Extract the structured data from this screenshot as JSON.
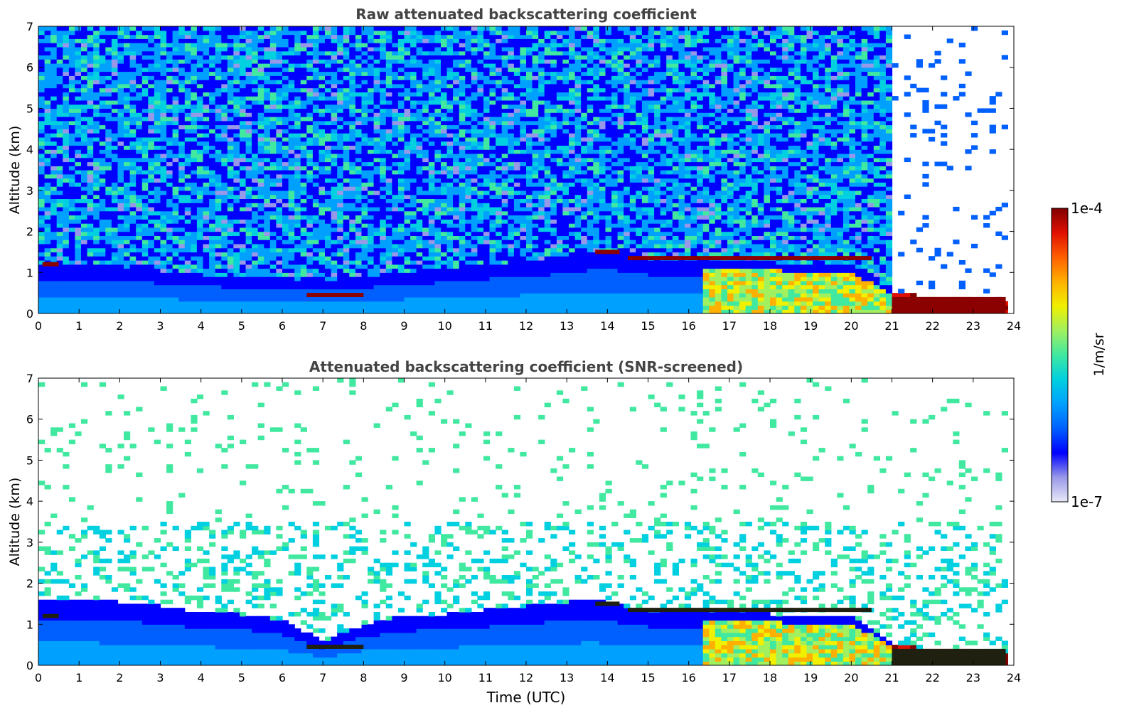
{
  "chart_data": [
    {
      "type": "heatmap",
      "title": "Raw attenuated backscattering coefficient",
      "xlabel": "",
      "ylabel": "Altitude (km)",
      "xlim": [
        0,
        24
      ],
      "ylim": [
        0,
        7
      ],
      "xticks": [
        0,
        1,
        2,
        3,
        4,
        5,
        6,
        7,
        8,
        9,
        10,
        11,
        12,
        13,
        14,
        15,
        16,
        17,
        18,
        19,
        20,
        21,
        22,
        23,
        24
      ],
      "yticks": [
        0,
        1,
        2,
        3,
        4,
        5,
        6,
        7
      ],
      "screened": false,
      "layer_top_km": [
        [
          0,
          1.2
        ],
        [
          1,
          1.2
        ],
        [
          2,
          1.15
        ],
        [
          3,
          1.05
        ],
        [
          4,
          0.95
        ],
        [
          5,
          0.9
        ],
        [
          6,
          0.88
        ],
        [
          7,
          0.8
        ],
        [
          8,
          0.9
        ],
        [
          9,
          1.0
        ],
        [
          10,
          1.1
        ],
        [
          11,
          1.2
        ],
        [
          12,
          1.3
        ],
        [
          13,
          1.4
        ],
        [
          13.7,
          1.55
        ],
        [
          14.2,
          1.5
        ],
        [
          14.5,
          1.5
        ],
        [
          15,
          1.35
        ],
        [
          16,
          1.3
        ],
        [
          17,
          1.35
        ],
        [
          18,
          1.25
        ],
        [
          19,
          1.2
        ],
        [
          20,
          1.2
        ],
        [
          21,
          0.55
        ],
        [
          22,
          0.4
        ],
        [
          23,
          0.35
        ],
        [
          23.8,
          0.3
        ]
      ],
      "cloud_layers": [
        {
          "x": [
            0.1,
            0.5
          ],
          "alt_km": 1.2
        },
        {
          "x": [
            6.6,
            8.0
          ],
          "alt_km": 0.45
        },
        {
          "x": [
            13.7,
            14.3
          ],
          "alt_km": 1.5
        },
        {
          "x": [
            14.5,
            20.5
          ],
          "alt_km": 1.35
        },
        {
          "x": [
            21.0,
            23.8
          ],
          "alt_km": 0.25
        }
      ]
    },
    {
      "type": "heatmap",
      "title": "Attenuated backscattering coefficient (SNR-screened)",
      "xlabel": "Time (UTC)",
      "ylabel": "Altitude (km)",
      "xlim": [
        0,
        24
      ],
      "ylim": [
        0,
        7
      ],
      "xticks": [
        0,
        1,
        2,
        3,
        4,
        5,
        6,
        7,
        8,
        9,
        10,
        11,
        12,
        13,
        14,
        15,
        16,
        17,
        18,
        19,
        20,
        21,
        22,
        23,
        24
      ],
      "yticks": [
        0,
        1,
        2,
        3,
        4,
        5,
        6,
        7
      ],
      "screened": true,
      "layer_top_km": [
        [
          0,
          1.6
        ],
        [
          1,
          1.6
        ],
        [
          2,
          1.55
        ],
        [
          3,
          1.45
        ],
        [
          4,
          1.3
        ],
        [
          5,
          1.25
        ],
        [
          6,
          1.1
        ],
        [
          7,
          0.6
        ],
        [
          8,
          1.0
        ],
        [
          9,
          1.2
        ],
        [
          10,
          1.25
        ],
        [
          11,
          1.35
        ],
        [
          12,
          1.45
        ],
        [
          13,
          1.55
        ],
        [
          13.7,
          1.6
        ],
        [
          14.2,
          1.5
        ],
        [
          15,
          1.35
        ],
        [
          16,
          1.3
        ],
        [
          17,
          1.35
        ],
        [
          18,
          1.25
        ],
        [
          19,
          1.2
        ],
        [
          20,
          1.2
        ],
        [
          21,
          0.55
        ],
        [
          22,
          0.4
        ],
        [
          23,
          0.35
        ],
        [
          23.8,
          0.3
        ]
      ],
      "cloud_layers": [
        {
          "x": [
            0.1,
            0.5
          ],
          "alt_km": 1.2
        },
        {
          "x": [
            6.6,
            8.0
          ],
          "alt_km": 0.45
        },
        {
          "x": [
            13.7,
            14.3
          ],
          "alt_km": 1.5
        },
        {
          "x": [
            14.5,
            20.5
          ],
          "alt_km": 1.35
        },
        {
          "x": [
            21.0,
            23.8
          ],
          "alt_km": 0.25
        }
      ]
    }
  ],
  "colorbar": {
    "label": "1/m/sr",
    "max_label": "1e-4",
    "min_label": "1e-7",
    "colors": [
      "#e8e8f8",
      "#9898e8",
      "#0000ff",
      "#0060ff",
      "#00a0ff",
      "#00d0e0",
      "#40e8a0",
      "#a0f060",
      "#f0f000",
      "#ffb000",
      "#ff6000",
      "#e01000",
      "#800000"
    ]
  }
}
